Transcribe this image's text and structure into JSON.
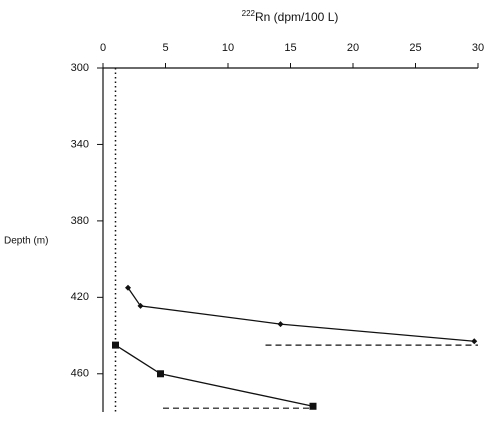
{
  "chart_data": {
    "type": "line",
    "title_superscript": "222",
    "title": "Rn (dpm/100 L)",
    "y_label": "Depth  (m)",
    "xlim": [
      0,
      30
    ],
    "xticks": [
      0,
      5,
      10,
      15,
      20,
      25,
      30
    ],
    "ylim": [
      300,
      480
    ],
    "yticks": [
      300,
      340,
      380,
      420,
      460
    ],
    "y_inverted": true,
    "series": [
      {
        "marker": "diamond",
        "color": "#111111",
        "depth": [
          415,
          424.5,
          434,
          443
        ],
        "values": [
          2,
          3,
          14.2,
          29.7
        ]
      },
      {
        "marker": "square",
        "color": "#111111",
        "depth": [
          445,
          460,
          477
        ],
        "values": [
          1,
          4.6,
          16.8
        ]
      }
    ],
    "reference_lines": [
      {
        "style": "dashed",
        "depth": [
          445,
          445
        ],
        "values": [
          13,
          30
        ]
      },
      {
        "style": "dashed",
        "depth": [
          478,
          478
        ],
        "values": [
          4.8,
          17
        ]
      },
      {
        "style": "dotted",
        "depth": [
          300,
          480
        ],
        "values": [
          1,
          1
        ]
      }
    ]
  }
}
